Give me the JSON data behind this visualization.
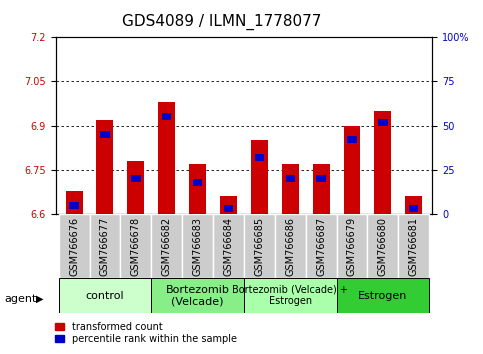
{
  "title": "GDS4089 / ILMN_1778077",
  "samples": [
    "GSM766676",
    "GSM766677",
    "GSM766678",
    "GSM766682",
    "GSM766683",
    "GSM766684",
    "GSM766685",
    "GSM766686",
    "GSM766687",
    "GSM766679",
    "GSM766680",
    "GSM766681"
  ],
  "transformed_count": [
    6.68,
    6.92,
    6.78,
    6.98,
    6.77,
    6.66,
    6.85,
    6.77,
    6.77,
    6.9,
    6.95,
    6.66
  ],
  "percentile_rank": [
    5,
    45,
    20,
    55,
    18,
    3,
    32,
    20,
    20,
    42,
    52,
    3
  ],
  "groups": [
    {
      "label": "control",
      "start": 0,
      "end": 3,
      "color": "#ccffcc",
      "font_size": 8
    },
    {
      "label": "Bortezomib\n(Velcade)",
      "start": 3,
      "end": 6,
      "color": "#88ee88",
      "font_size": 8
    },
    {
      "label": "Bortezomib (Velcade) +\nEstrogen",
      "start": 6,
      "end": 9,
      "color": "#aaffaa",
      "font_size": 7
    },
    {
      "label": "Estrogen",
      "start": 9,
      "end": 12,
      "color": "#33cc33",
      "font_size": 8
    }
  ],
  "ylim_left": [
    6.6,
    7.2
  ],
  "ylim_right": [
    0,
    100
  ],
  "yticks_left": [
    6.6,
    6.75,
    6.9,
    7.05,
    7.2
  ],
  "yticks_right": [
    0,
    25,
    50,
    75,
    100
  ],
  "bar_color": "#cc0000",
  "marker_color": "#0000cc",
  "bar_width": 0.55,
  "legend_red": "transformed count",
  "legend_blue": "percentile rank within the sample",
  "ylabel_left_color": "#cc0000",
  "ylabel_right_color": "#0000cc",
  "tick_font_size": 7,
  "title_font_size": 11,
  "xtick_bg": "#cccccc"
}
